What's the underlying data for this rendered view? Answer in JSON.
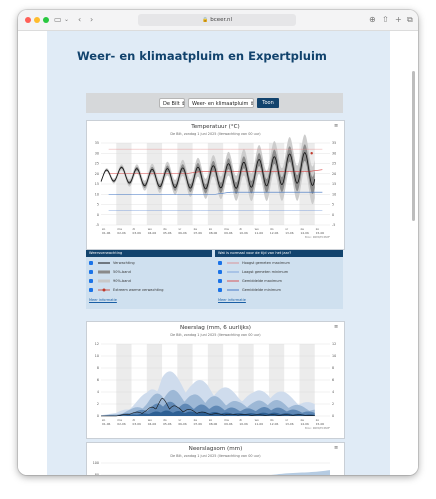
{
  "browser": {
    "url": "bceer.nl",
    "colors": {
      "red": "#ff5f57",
      "yellow": "#febc2e",
      "green": "#28c840"
    }
  },
  "page": {
    "title": "Weer- en klimaatpluim en Expertpluim"
  },
  "form": {
    "location": "De Bilt",
    "product": "Weer- en klimaatpluim",
    "submit": "Toon"
  },
  "temperature_chart": {
    "title": "Temperatuur (°C)",
    "subtitle": "De Bilt, zondag 1 juni 2025 (Verwachting van 00 uur)",
    "credit": "Bron: KNMI/ECMWF",
    "y_left_ticks": [
      "35",
      "30",
      "25",
      "20",
      "15",
      "10",
      "5",
      "0",
      "-5"
    ],
    "y_right_ticks": [
      "35",
      "30",
      "25",
      "20",
      "15",
      "10",
      "5",
      "0",
      "-5"
    ],
    "x_day_ticks": [
      "zo",
      "ma",
      "di",
      "wo",
      "do",
      "vr",
      "za",
      "zo",
      "ma",
      "di",
      "wo",
      "do",
      "vr",
      "za",
      "zo"
    ],
    "x_date_ticks": [
      "01-06",
      "02-06",
      "03-06",
      "04-06",
      "05-06",
      "06-06",
      "07-06",
      "08-06",
      "09-06",
      "10-06",
      "11-06",
      "12-06",
      "13-06",
      "14-06",
      "15-06"
    ]
  },
  "chart_data": [
    {
      "type": "line",
      "title": "Temperatuur (°C)",
      "ylim": [
        -5,
        35
      ],
      "x": [
        "01-06",
        "02-06",
        "03-06",
        "04-06",
        "05-06",
        "06-06",
        "07-06",
        "08-06",
        "09-06",
        "10-06",
        "11-06",
        "12-06",
        "13-06",
        "14-06",
        "15-06"
      ],
      "series": [
        {
          "name": "Verwachting",
          "values": [
            18,
            20,
            19,
            18,
            18,
            18,
            18,
            18,
            19,
            19,
            20,
            21,
            22,
            23,
            22
          ]
        },
        {
          "name": "Hoogst gemeten maximum",
          "values": [
            32,
            32,
            32,
            32,
            32,
            32,
            32,
            32,
            32,
            32,
            32,
            32,
            32,
            32,
            32
          ]
        },
        {
          "name": "Laagst gemeten minimum",
          "values": [
            2,
            2,
            2,
            2,
            2,
            2,
            2,
            2,
            2,
            2,
            2,
            2,
            2,
            2,
            2
          ]
        },
        {
          "name": "Gemiddelde maximum",
          "values": [
            20,
            20,
            20,
            20,
            20,
            20,
            21,
            21,
            21,
            21,
            21,
            21,
            21,
            21,
            22
          ]
        },
        {
          "name": "Gemiddelde minimum",
          "values": [
            10,
            10,
            10,
            10,
            10,
            10,
            10,
            10,
            11,
            11,
            11,
            11,
            11,
            11,
            11
          ]
        }
      ]
    },
    {
      "type": "area",
      "title": "Neerslag (mm, 6 uurlijks)",
      "ylim": [
        0,
        12
      ],
      "x": [
        "01-06",
        "02-06",
        "03-06",
        "04-06",
        "05-06",
        "06-06",
        "07-06",
        "08-06",
        "09-06",
        "10-06",
        "11-06",
        "12-06",
        "13-06",
        "14-06",
        "15-06"
      ],
      "series": [
        {
          "name": "Verwachting",
          "values": [
            0,
            0,
            0.5,
            1,
            3,
            1.5,
            1,
            0.5,
            0.3,
            0.3,
            0.2,
            0.2,
            0.2,
            0.2,
            0.1
          ]
        },
        {
          "name": "90%-band",
          "values": [
            0.2,
            0.5,
            2,
            4,
            8,
            7,
            6,
            6,
            5,
            4,
            4,
            5,
            4,
            3,
            2
          ]
        }
      ]
    }
  ],
  "legend": {
    "left_header": "Weersverwachting",
    "right_header": "Wat is normaal voor de tijd van het jaar?",
    "left_items": [
      "Verwachting",
      "50%-band",
      "90%-band",
      "Extreem warme verwachting"
    ],
    "right_items": [
      "Hoogst gemeten maximum",
      "Laagst gemeten minimum",
      "Gemiddelde maximum",
      "Gemiddelde minimum"
    ],
    "left_more": "Meer informatie",
    "right_more": "Meer informatie"
  },
  "precip_chart": {
    "title": "Neerslag (mm, 6 uurlijks)",
    "subtitle": "De Bilt, zondag 1 juni 2025 (Verwachting van 00 uur)",
    "credit": "Bron: KNMI/ECMWF",
    "y_left_ticks": [
      "12",
      "10",
      "8",
      "6",
      "4",
      "2",
      "0"
    ],
    "y_right_ticks": [
      "12",
      "10",
      "8",
      "6",
      "4",
      "2",
      "0"
    ],
    "x_day_ticks": [
      "zo",
      "ma",
      "di",
      "wo",
      "do",
      "vr",
      "za",
      "zo",
      "ma",
      "di",
      "wo",
      "do",
      "vr",
      "za",
      "zo"
    ],
    "x_date_ticks": [
      "01-06",
      "02-06",
      "03-06",
      "04-06",
      "05-06",
      "06-06",
      "07-06",
      "08-06",
      "09-06",
      "10-06",
      "11-06",
      "12-06",
      "13-06",
      "14-06",
      "15-06"
    ]
  },
  "cumulative_chart": {
    "title": "Neerslagsom (mm)",
    "subtitle": "De Bilt, zondag 1 juni 2025 (Verwachting van 00 uur)",
    "y_ticks": [
      "100",
      "80"
    ]
  }
}
